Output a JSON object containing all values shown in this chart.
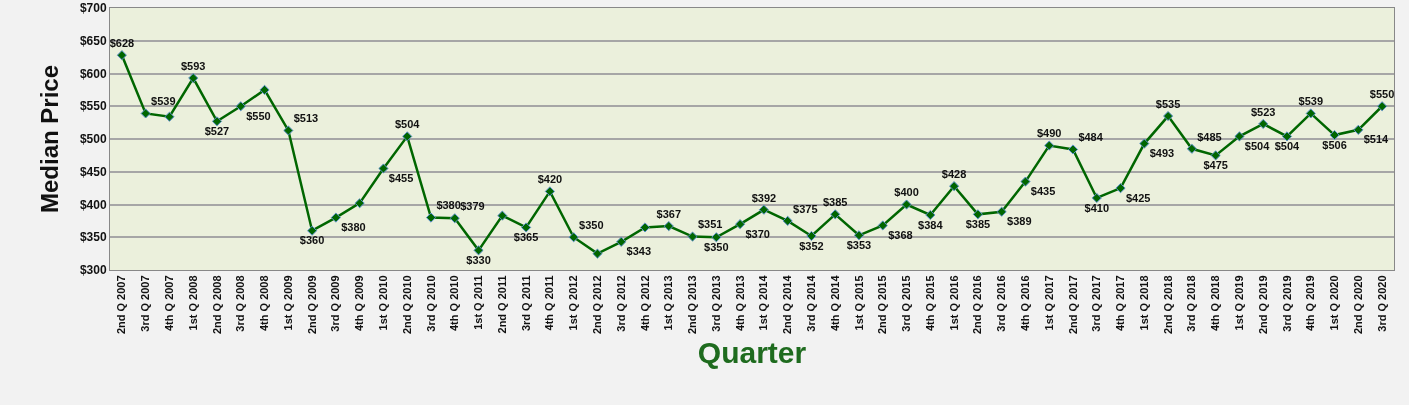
{
  "chart_data": {
    "type": "line",
    "xlabel": "Quarter",
    "ylabel": "Median Price",
    "categories": [
      "2nd Q 2007",
      "3rd Q 2007",
      "4th Q 2007",
      "1st Q 2008",
      "2nd Q 2008",
      "3rd Q 2008",
      "4th Q 2008",
      "1st Q 2009",
      "2nd Q 2009",
      "3rd Q 2009",
      "4th Q 2009",
      "1st Q 2010",
      "2nd Q 2010",
      "3rd Q 2010",
      "4th Q 2010",
      "1st Q 2011",
      "2nd Q 2011",
      "3rd Q 2011",
      "4th Q 2011",
      "1st Q 2012",
      "2nd Q 2012",
      "3rd Q 2012",
      "4th Q 2012",
      "1st Q 2013",
      "2nd Q 2013",
      "3rd Q 2013",
      "4th Q 2013",
      "1st Q 2014",
      "2nd Q 2014",
      "3rd Q 2014",
      "4th Q 2014",
      "1st Q 2015",
      "2nd Q 2015",
      "3rd Q 2015",
      "4th Q 2015",
      "1st Q 2016",
      "2nd Q 2016",
      "3rd Q 2016",
      "4th Q 2016",
      "1st Q 2017",
      "2nd Q 2017",
      "3rd Q 2017",
      "4th Q 2017",
      "1st Q 2018",
      "2nd Q 2018",
      "3rd Q 2018",
      "4th Q 2018",
      "1st Q 2019",
      "2nd Q 2019",
      "3rd Q 2019",
      "4th Q 2019",
      "1st Q 2020",
      "2nd Q 2020",
      "3rd Q 2020"
    ],
    "series": [
      {
        "color": "#006600",
        "values": [
          628,
          539,
          534,
          593,
          527,
          550,
          575,
          513,
          360,
          380,
          402,
          455,
          504,
          380,
          379,
          330,
          383,
          365,
          420,
          350,
          325,
          343,
          365,
          367,
          351,
          350,
          370,
          392,
          375,
          352,
          385,
          353,
          368,
          400,
          384,
          428,
          385,
          389,
          435,
          490,
          484,
          410,
          425,
          493,
          535,
          485,
          475,
          504,
          523,
          504,
          539,
          506,
          514,
          550
        ],
        "value_labels": [
          "$628",
          "$539",
          null,
          "$593",
          "$527",
          "$550",
          null,
          "$513",
          "$360",
          "$380",
          null,
          "$455",
          "$504",
          "$380",
          "$379",
          "$330",
          null,
          "$365",
          "$420",
          "$350",
          null,
          "$343",
          null,
          "$367",
          "$351",
          "$350",
          "$370",
          "$392",
          "$375",
          "$352",
          "$385",
          "$353",
          "$368",
          "$400",
          "$384",
          "$428",
          "$385",
          "$389",
          "$435",
          "$490",
          "$484",
          "$410",
          "$425",
          "$493",
          "$535",
          "$485",
          "$475",
          "$504",
          "$523",
          "$504",
          "$539",
          "$506",
          "$514",
          "$550"
        ]
      }
    ],
    "ylim": [
      300,
      700
    ],
    "yticks": [
      {
        "value": 300,
        "label": "$300"
      },
      {
        "value": 350,
        "label": "$350"
      },
      {
        "value": 400,
        "label": "$400"
      },
      {
        "value": 450,
        "label": "$450"
      },
      {
        "value": 500,
        "label": "$500"
      },
      {
        "value": 550,
        "label": "$550"
      },
      {
        "value": 600,
        "label": "$600"
      },
      {
        "value": 650,
        "label": "$650"
      },
      {
        "value": 700,
        "label": "$700"
      }
    ],
    "grid": "y",
    "marker": "diamond",
    "line_style": "solid"
  }
}
